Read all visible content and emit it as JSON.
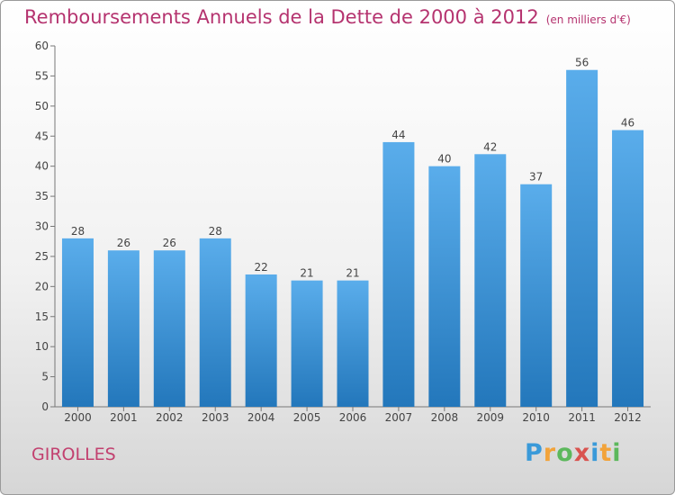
{
  "header": {
    "title": "Remboursements Annuels de la Dette de 2000 à 2012",
    "unit": "(en milliers d'€)"
  },
  "footer": {
    "town": "GIROLLES",
    "logo": {
      "letters": [
        "P",
        "r",
        "o",
        "x",
        "i",
        "t",
        "i"
      ],
      "colors": [
        "#3a9ad9",
        "#f2a33a",
        "#5cb85c",
        "#d9534f",
        "#3a9ad9",
        "#f2a33a",
        "#5cb85c"
      ]
    }
  },
  "colors": {
    "bar_top": "#5aadeb",
    "bar_bottom": "#2377bb",
    "title": "#b5336f"
  },
  "chart_data": {
    "type": "bar",
    "title": "Remboursements Annuels de la Dette de 2000 à 2012",
    "subtitle": "(en milliers d'€)",
    "xlabel": "",
    "ylabel": "",
    "categories": [
      "2000",
      "2001",
      "2002",
      "2003",
      "2004",
      "2005",
      "2006",
      "2007",
      "2008",
      "2009",
      "2010",
      "2011",
      "2012"
    ],
    "values": [
      28,
      26,
      26,
      28,
      22,
      21,
      21,
      44,
      40,
      42,
      37,
      56,
      46
    ],
    "ylim": [
      0,
      60
    ],
    "yticks": [
      0,
      5,
      10,
      15,
      20,
      25,
      30,
      35,
      40,
      45,
      50,
      55,
      60
    ],
    "grid": false,
    "legend": "none"
  }
}
